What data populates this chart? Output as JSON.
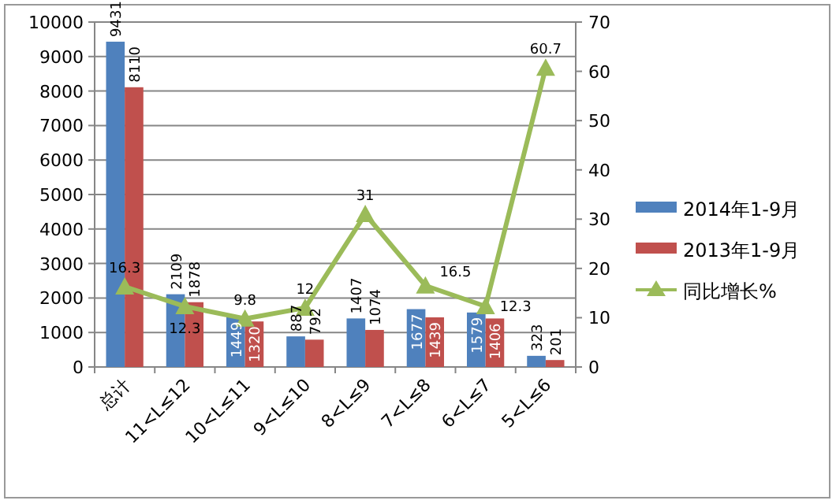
{
  "chart_data": {
    "type": "bar",
    "categories": [
      "总计",
      "11<L≤12",
      "10<L≤11",
      "9<L≤10",
      "8<L≤9",
      "7<L≤8",
      "6<L≤7",
      "5<L≤6"
    ],
    "series": [
      {
        "name": "2014年1-9月",
        "color": "#4f81bd",
        "values": [
          9431,
          2109,
          1449,
          887,
          1407,
          1677,
          1579,
          323
        ]
      },
      {
        "name": "2013年1-9月",
        "color": "#c0504d",
        "values": [
          8110,
          1878,
          1320,
          792,
          1074,
          1439,
          1406,
          201
        ]
      },
      {
        "name": "同比增长%",
        "type": "line",
        "axis": "y2",
        "color": "#9bbb59",
        "values": [
          16.3,
          12.3,
          9.8,
          12,
          31,
          16.5,
          12.3,
          60.7
        ]
      }
    ],
    "ylim": [
      0,
      10000
    ],
    "yticks": [
      0,
      1000,
      2000,
      3000,
      4000,
      5000,
      6000,
      7000,
      8000,
      9000,
      10000
    ],
    "y2lim": [
      0,
      70
    ],
    "y2ticks": [
      0,
      10,
      20,
      30,
      40,
      50,
      60,
      70
    ],
    "grid": "y",
    "legend": "right",
    "marker": "triangle",
    "line_style": "solid",
    "data_labels": true
  }
}
